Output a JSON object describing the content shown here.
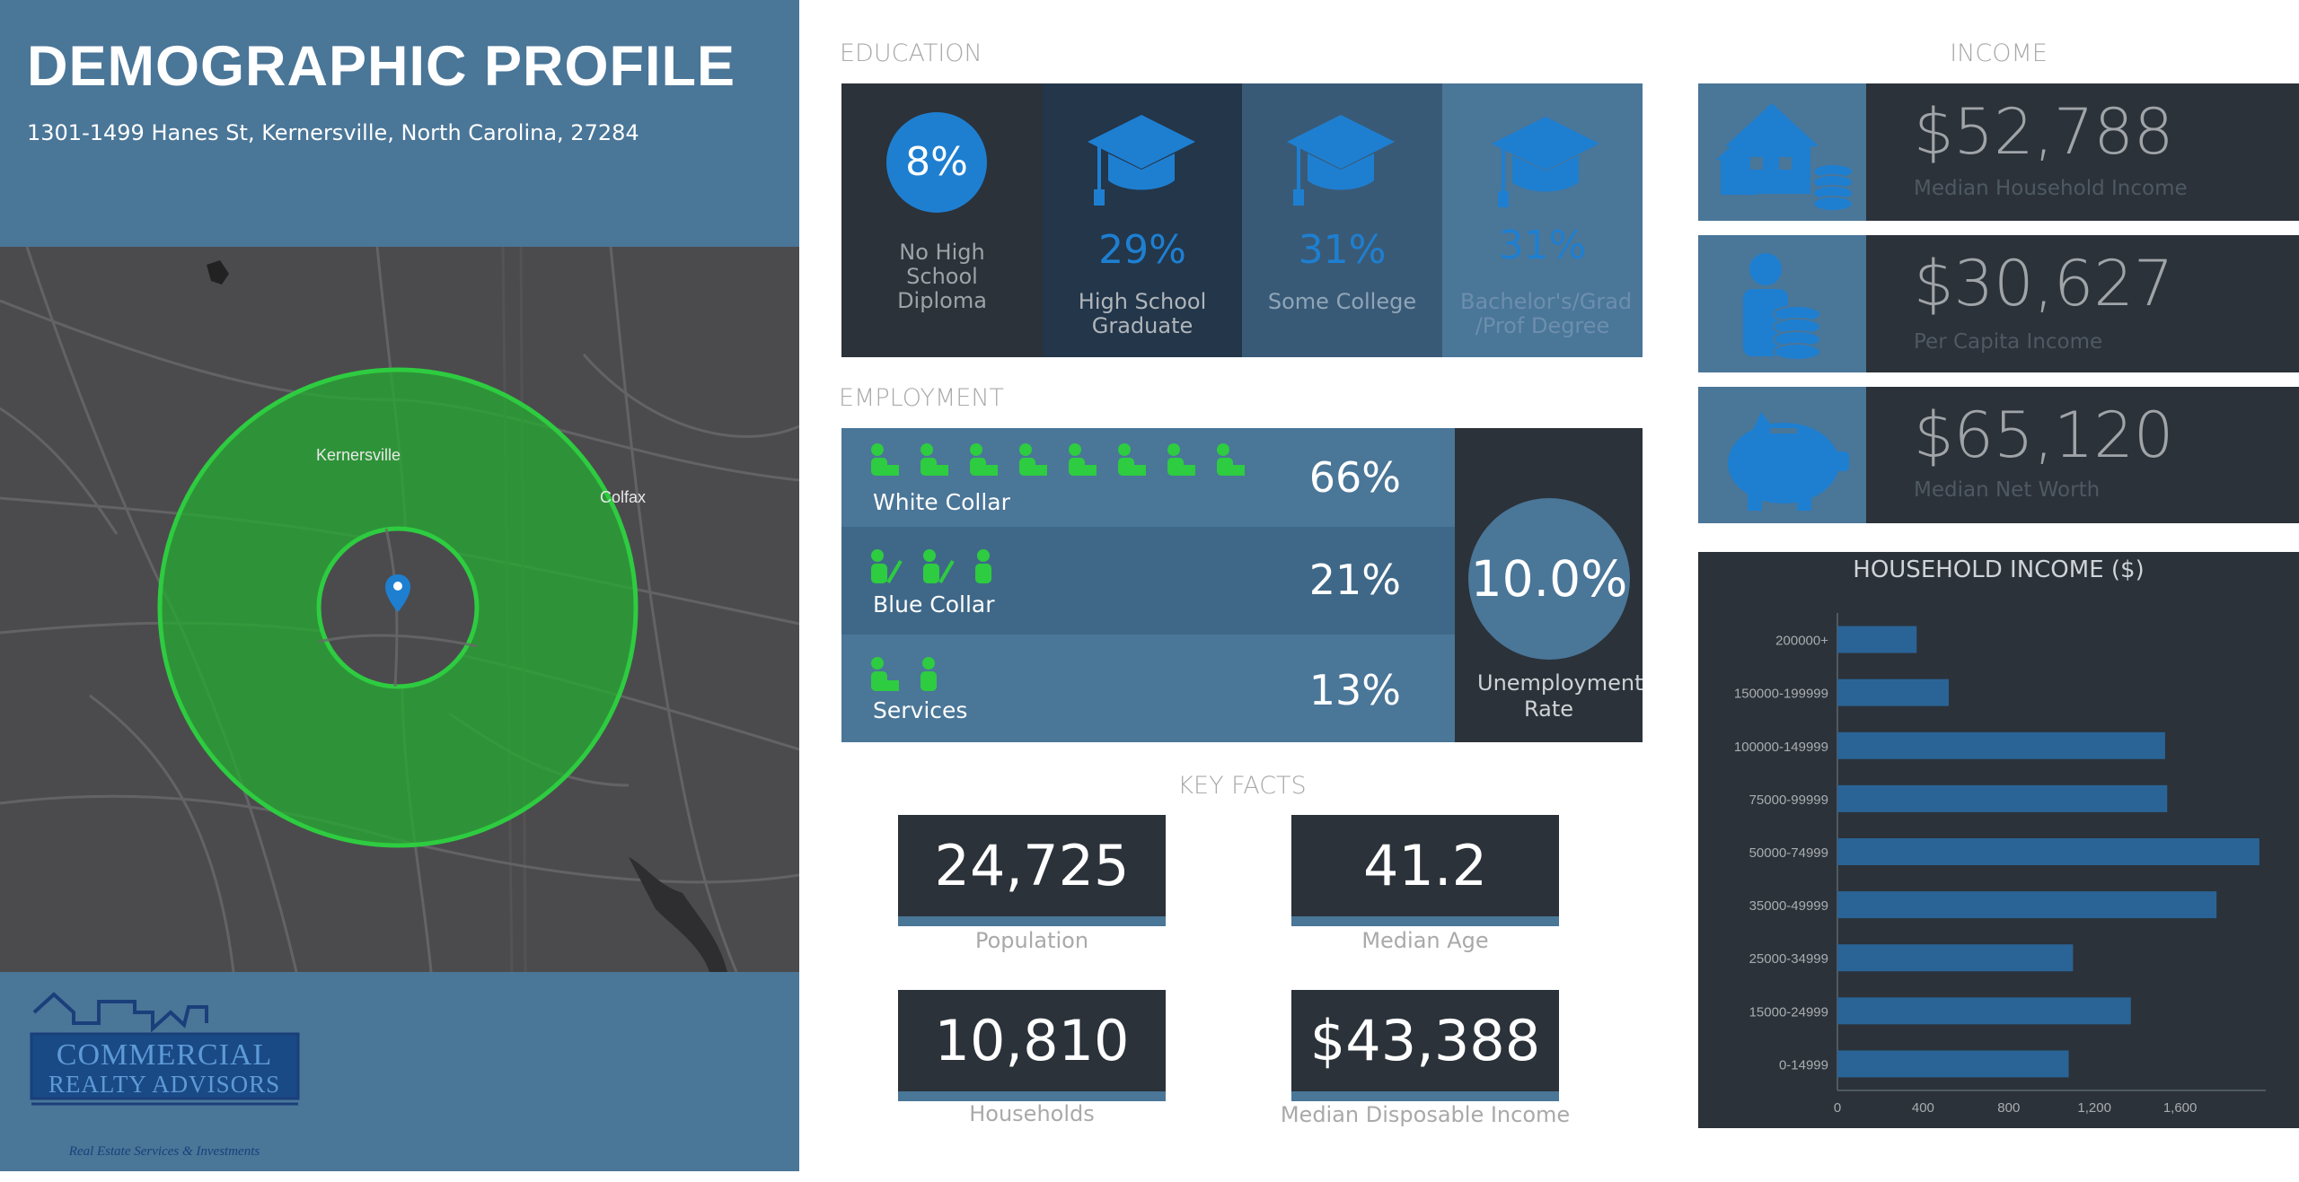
{
  "header": {
    "title": "DEMOGRAPHIC PROFILE",
    "address": "1301-1499 Hanes St, Kernersville, North Carolina, 27284"
  },
  "map": {
    "labels": [
      "Kernersville",
      "Colfax"
    ],
    "ring_color": "#2ecc40"
  },
  "logo": {
    "line1": "COMMERCIAL",
    "line2": "REALTY ADVISORS",
    "tagline": "Real Estate Services & Investments"
  },
  "education": {
    "title": "EDUCATION",
    "items": [
      {
        "pct": "8%",
        "label": "No High School Diploma"
      },
      {
        "pct": "29%",
        "label": "High School Graduate"
      },
      {
        "pct": "31%",
        "label": "Some College"
      },
      {
        "pct": "31%",
        "label": "Bachelor's/Grad /Prof Degree"
      }
    ]
  },
  "employment": {
    "title": "EMPLOYMENT",
    "rows": [
      {
        "label": "White Collar",
        "pct": "66%",
        "icons": 8
      },
      {
        "label": "Blue Collar",
        "pct": "21%",
        "icons": 3
      },
      {
        "label": "Services",
        "pct": "13%",
        "icons": 2
      }
    ],
    "unemployment_value": "10.0%",
    "unemployment_label": "Unemployment Rate"
  },
  "key_facts": {
    "title": "KEY FACTS",
    "items": [
      {
        "value": "24,725",
        "label": "Population"
      },
      {
        "value": "41.2",
        "label": "Median Age"
      },
      {
        "value": "10,810",
        "label": "Households"
      },
      {
        "value": "$43,388",
        "label": "Median Disposable Income"
      }
    ]
  },
  "income": {
    "title": "INCOME",
    "items": [
      {
        "value": "$52,788",
        "label": "Median Household Income",
        "icon": "house-coins-icon"
      },
      {
        "value": "$30,627",
        "label": "Per Capita Income",
        "icon": "person-coins-icon"
      },
      {
        "value": "$65,120",
        "label": "Median Net Worth",
        "icon": "piggy-bank-icon"
      }
    ]
  },
  "chart_data": {
    "type": "bar",
    "orientation": "horizontal",
    "title": "HOUSEHOLD INCOME ($)",
    "categories": [
      "200000+",
      "150000-199999",
      "100000-149999",
      "75000-99999",
      "50000-74999",
      "35000-49999",
      "25000-34999",
      "15000-24999",
      "0-14999"
    ],
    "values": [
      370,
      520,
      1530,
      1540,
      1970,
      1770,
      1100,
      1370,
      1080
    ],
    "xticks": [
      "0",
      "400",
      "800",
      "1,200",
      "1,600"
    ],
    "xlim": [
      0,
      2000
    ],
    "bar_color": "#2a6496"
  }
}
